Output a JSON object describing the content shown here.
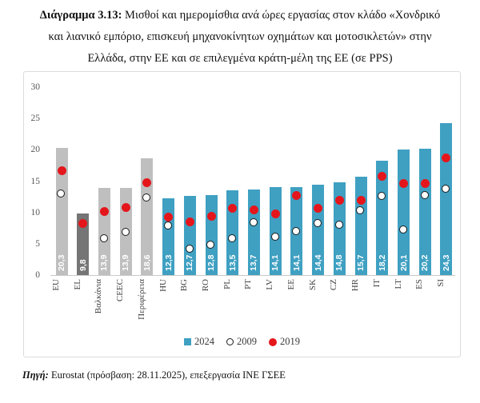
{
  "title": {
    "prefix": "Διάγραμμα 3.13:",
    "line1": " Μισθοί και ημερομίσθια ανά ώρες εργασίας στον κλάδο «Χονδρικό",
    "line2": "και λιανικό εμπόριο, επισκευή μηχανοκίνητων οχημάτων και μοτοσικλετών» στην",
    "line3": "Ελλάδα, στην ΕΕ και σε επιλεγμένα κράτη-μέλη της ΕΕ (σε PPS)"
  },
  "chart_data": {
    "type": "bar",
    "title": "Μισθοί και ημερομίσθια ανά ώρες εργασίας (σε PPS)",
    "categories": [
      "EU",
      "EL",
      "Βαλκάνια",
      "CEEC",
      "Περιφέρεια",
      "HU",
      "BG",
      "RO",
      "PL",
      "PT",
      "LV",
      "EE",
      "SK",
      "CZ",
      "HR",
      "IT",
      "LT",
      "ES",
      "SI"
    ],
    "series": [
      {
        "name": "2024",
        "type": "bar",
        "values": [
          20.3,
          9.8,
          13.9,
          13.9,
          18.6,
          12.3,
          12.7,
          12.8,
          13.5,
          13.7,
          14.1,
          14.1,
          14.4,
          14.8,
          15.7,
          18.2,
          20.1,
          20.2,
          24.3
        ]
      },
      {
        "name": "2009",
        "type": "open-circle",
        "values": [
          13.0,
          null,
          5.8,
          6.8,
          12.3,
          7.8,
          4.1,
          4.8,
          5.8,
          8.3,
          6.0,
          7.0,
          8.2,
          8.0,
          10.3,
          12.6,
          7.2,
          12.7,
          13.7
        ]
      },
      {
        "name": "2019",
        "type": "filled-circle",
        "values": [
          16.7,
          8.2,
          10.2,
          10.8,
          14.8,
          9.2,
          8.5,
          9.4,
          10.7,
          10.4,
          9.8,
          12.7,
          10.6,
          11.9,
          11.9,
          15.8,
          14.6,
          14.6,
          18.7
        ]
      }
    ],
    "bar_colors": [
      "#bfbfbf",
      "#757575",
      "#bfbfbf",
      "#bfbfbf",
      "#bfbfbf",
      "#3fa0c2",
      "#3fa0c2",
      "#3fa0c2",
      "#3fa0c2",
      "#3fa0c2",
      "#3fa0c2",
      "#3fa0c2",
      "#3fa0c2",
      "#3fa0c2",
      "#3fa0c2",
      "#3fa0c2",
      "#3fa0c2",
      "#3fa0c2",
      "#3fa0c2"
    ],
    "colors": {
      "blue": "#3fa0c2",
      "gray": "#bfbfbf",
      "dark_gray": "#757575",
      "red": "#e4161b",
      "open_circle_stroke": "#1a1a1a"
    },
    "ylim": [
      0,
      30
    ],
    "yticks": [
      0,
      5,
      10,
      15,
      20,
      25,
      30
    ],
    "grid": false,
    "legend_position": "bottom",
    "decimal_separator": ","
  },
  "legend": {
    "items": [
      {
        "label": "2024",
        "marker": "square"
      },
      {
        "label": "2009",
        "marker": "open-circle"
      },
      {
        "label": "2019",
        "marker": "filled-circle"
      }
    ]
  },
  "footer": {
    "label": "Πηγή:",
    "text": " Eurostat (πρόσβαση: 28.11.2025), επεξεργασία ΙΝΕ ΓΣΕΕ"
  }
}
